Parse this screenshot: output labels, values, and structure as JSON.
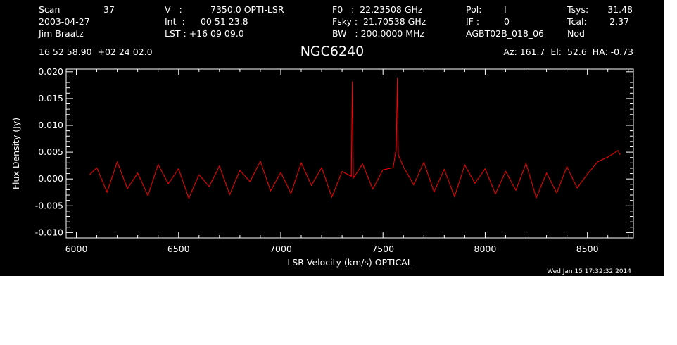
{
  "header": {
    "col1": [
      "Scan",
      "2003-04-27",
      "Jim Braatz"
    ],
    "scan_number": "37",
    "col2": [
      "V   :",
      "Int  :",
      "LST : +16 09 09.0"
    ],
    "col2_values": [
      "7350.0 OPTI-LSR",
      "00 51 23.8"
    ],
    "col3": [
      "F0   :  22.23508 GHz",
      "Fsky :  21.70538 GHz",
      "BW   : 200.0000 MHz"
    ],
    "col4": [
      "Pol:",
      "IF :",
      "AGBT02B_018_06"
    ],
    "col4_values": [
      "I",
      "0"
    ],
    "col5": [
      "Tsys:",
      "Tcal:",
      "Nod"
    ],
    "col5_values": [
      "31.48",
      "2.37"
    ],
    "coords": "16 52 58.90  +02 24 02.0",
    "source": "NGC6240",
    "pointing": "Az: 161.7  El:  52.6  HA: -0.73",
    "timestamp": "Wed Jan 15 17:32:32 2014"
  },
  "chart_data": {
    "type": "line",
    "title": "NGC6240",
    "xlabel": "LSR Velocity (km/s) OPTICAL",
    "ylabel": "Flux Density (Jy)",
    "xlim": [
      5950,
      8725
    ],
    "ylim": [
      -0.011,
      0.0205
    ],
    "xticks": [
      6000,
      6500,
      7000,
      7500,
      8000,
      8500
    ],
    "xtick_labels": [
      "6000",
      "6500",
      "7000",
      "7500",
      "8000",
      "8500"
    ],
    "yticks": [
      -0.01,
      -0.005,
      0.0,
      0.005,
      0.01,
      0.015,
      0.02
    ],
    "ytick_labels": [
      "-0.010",
      "-0.005",
      "0.000",
      "0.005",
      "0.010",
      "0.015",
      "0.020"
    ],
    "grid": false,
    "series": [
      {
        "color": "#ff0000",
        "x": [
          6065,
          6100,
          6150,
          6200,
          6250,
          6300,
          6350,
          6400,
          6450,
          6500,
          6550,
          6600,
          6650,
          6700,
          6750,
          6800,
          6850,
          6900,
          6950,
          7000,
          7050,
          7100,
          7150,
          7200,
          7250,
          7300,
          7345,
          7350,
          7355,
          7400,
          7450,
          7500,
          7550,
          7565,
          7570,
          7575,
          7600,
          7650,
          7700,
          7750,
          7800,
          7850,
          7900,
          7950,
          8000,
          8050,
          8100,
          8150,
          8200,
          8250,
          8300,
          8350,
          8400,
          8450,
          8500,
          8550,
          8600,
          8650,
          8660
        ],
        "y": [
          0.0008,
          0.0021,
          -0.0025,
          0.0032,
          -0.0018,
          0.0011,
          -0.0031,
          0.0027,
          -0.0009,
          0.0019,
          -0.0036,
          0.0008,
          -0.0014,
          0.0024,
          -0.0029,
          0.0016,
          -0.0005,
          0.0033,
          -0.0022,
          0.0012,
          -0.0027,
          0.003,
          -0.0012,
          0.0021,
          -0.0034,
          0.0014,
          0.0005,
          0.0182,
          0.0002,
          0.0028,
          -0.0019,
          0.0017,
          0.0021,
          0.0058,
          0.0188,
          0.0045,
          0.0023,
          -0.0011,
          0.0031,
          -0.0024,
          0.0018,
          -0.0033,
          0.0026,
          -0.0008,
          0.0019,
          -0.0028,
          0.0014,
          -0.0021,
          0.0029,
          -0.0035,
          0.0011,
          -0.0026,
          0.0023,
          -0.0017,
          0.0009,
          0.0032,
          0.0041,
          0.0053,
          0.0045
        ]
      }
    ]
  }
}
